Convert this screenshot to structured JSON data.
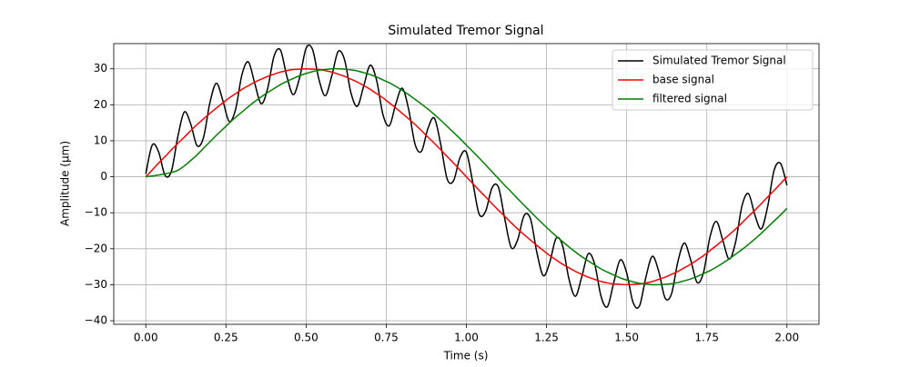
{
  "chart_data": {
    "type": "line",
    "title": "Simulated Tremor Signal",
    "x_label": "Time (s)",
    "y_label": "Amplitude (μm)",
    "x": [
      0,
      0.02,
      0.04,
      0.06,
      0.08,
      0.1,
      0.12,
      0.14,
      0.16,
      0.18,
      0.2,
      0.22,
      0.24,
      0.26,
      0.28,
      0.3,
      0.32,
      0.34,
      0.36,
      0.38,
      0.4,
      0.42,
      0.44,
      0.46,
      0.48,
      0.5,
      0.52,
      0.54,
      0.56,
      0.58,
      0.6,
      0.62,
      0.64,
      0.66,
      0.68,
      0.7,
      0.72,
      0.74,
      0.76,
      0.78,
      0.8,
      0.82,
      0.84,
      0.86,
      0.88,
      0.9,
      0.92,
      0.94,
      0.96,
      0.98,
      1,
      1.02,
      1.04,
      1.06,
      1.08,
      1.1,
      1.12,
      1.14,
      1.16,
      1.18,
      1.2,
      1.22,
      1.24,
      1.26,
      1.28,
      1.3,
      1.32,
      1.34,
      1.36,
      1.38,
      1.4,
      1.42,
      1.44,
      1.46,
      1.48,
      1.5,
      1.52,
      1.54,
      1.56,
      1.58,
      1.6,
      1.62,
      1.64,
      1.66,
      1.68,
      1.7,
      1.72,
      1.74,
      1.76,
      1.78,
      1.8,
      1.82,
      1.84,
      1.86,
      1.88,
      1.9,
      1.92,
      1.94,
      1.96,
      1.98,
      2
    ],
    "series": [
      {
        "name": "Simulated Tremor Signal",
        "color": "#000000",
        "values": [
          0.8,
          8.8,
          6.9,
          0.4,
          1.6,
          11.2,
          18.0,
          14.7,
          8.6,
          10.9,
          20.6,
          26.0,
          21.3,
          15.4,
          18.7,
          28.4,
          31.9,
          25.9,
          20.3,
          24.5,
          33.5,
          35.2,
          27.9,
          22.8,
          27.6,
          35.7,
          35.4,
          27.1,
          22.5,
          28.0,
          34.8,
          32.5,
          23.3,
          19.6,
          25.3,
          31.0,
          26.8,
          17.2,
          14.2,
          20.3,
          24.6,
          18.7,
          9.0,
          7.1,
          13.4,
          16.3,
          9.0,
          -0.6,
          -1.1,
          5.3,
          6.8,
          -1.6,
          -10.4,
          -9.6,
          -3.1,
          -2.9,
          -11.8,
          -19.7,
          -17.5,
          -10.8,
          -11.7,
          -21.1,
          -27.5,
          -23.8,
          -17.1,
          -19.1,
          -28.4,
          -33.2,
          -27.8,
          -21.4,
          -24.2,
          -33.2,
          -36.1,
          -29.3,
          -23.1,
          -26.7,
          -34.9,
          -35.9,
          -27.9,
          -22.1,
          -26.3,
          -33.7,
          -32.5,
          -23.5,
          -18.4,
          -23.2,
          -29.4,
          -26.5,
          -16.7,
          -12.4,
          -17.7,
          -22.9,
          -18.1,
          -8.0,
          -4.7,
          -10.6,
          -14.5,
          -8.2,
          1.8,
          3.7,
          -2.4
        ]
      },
      {
        "name": "base signal",
        "color": "#ff0000",
        "values": [
          0,
          1.9,
          3.8,
          5.6,
          7.5,
          9.3,
          11.0,
          12.8,
          14.5,
          16.1,
          17.6,
          19.1,
          20.5,
          21.9,
          23.1,
          24.3,
          25.3,
          26.3,
          27.1,
          27.9,
          28.5,
          29.1,
          29.5,
          29.8,
          29.9,
          30,
          29.9,
          29.8,
          29.5,
          29.1,
          28.5,
          27.9,
          27.1,
          26.3,
          25.3,
          24.3,
          23.1,
          21.9,
          20.5,
          19.1,
          17.6,
          16.1,
          14.5,
          12.8,
          11.0,
          9.3,
          7.5,
          5.6,
          3.8,
          1.9,
          0,
          -1.9,
          -3.8,
          -5.6,
          -7.5,
          -9.3,
          -11.0,
          -12.8,
          -14.5,
          -16.1,
          -17.6,
          -19.1,
          -20.5,
          -21.9,
          -23.1,
          -24.3,
          -25.3,
          -26.3,
          -27.1,
          -27.9,
          -28.5,
          -29.1,
          -29.5,
          -29.8,
          -29.9,
          -30,
          -29.9,
          -29.8,
          -29.5,
          -29.1,
          -28.5,
          -27.9,
          -27.1,
          -26.3,
          -25.3,
          -24.3,
          -23.1,
          -21.9,
          -20.5,
          -19.1,
          -17.6,
          -16.1,
          -14.5,
          -12.8,
          -11.0,
          -9.3,
          -7.5,
          -5.6,
          -3.8,
          -1.9,
          0
        ]
      },
      {
        "name": "filtered signal",
        "color": "#008000",
        "values": [
          0,
          0.2,
          0.5,
          0.8,
          1.2,
          1.8,
          3.0,
          4.5,
          6.1,
          7.9,
          9.7,
          11.5,
          13.2,
          14.9,
          16.5,
          18.0,
          19.5,
          20.9,
          22.2,
          23.4,
          24.5,
          25.6,
          26.5,
          27.3,
          28.1,
          28.7,
          29.2,
          29.6,
          29.8,
          30.0,
          30.0,
          29.9,
          29.7,
          29.4,
          28.9,
          28.4,
          27.7,
          26.9,
          26.1,
          25.1,
          24.0,
          22.8,
          21.5,
          20.2,
          18.8,
          17.3,
          15.7,
          14.0,
          12.3,
          10.6,
          8.8,
          7.0,
          5.2,
          3.3,
          1.4,
          -0.5,
          -2.4,
          -4.2,
          -6.1,
          -7.9,
          -9.7,
          -11.5,
          -13.2,
          -14.9,
          -16.5,
          -18.0,
          -19.5,
          -20.9,
          -22.2,
          -23.4,
          -24.5,
          -25.6,
          -26.5,
          -27.3,
          -28.1,
          -28.7,
          -29.2,
          -29.6,
          -29.8,
          -30.0,
          -30.0,
          -29.9,
          -29.7,
          -29.4,
          -28.9,
          -28.4,
          -27.7,
          -26.9,
          -26.1,
          -25.1,
          -24.0,
          -22.8,
          -21.5,
          -20.2,
          -18.8,
          -17.3,
          -15.7,
          -14.0,
          -12.3,
          -10.6,
          -8.8
        ]
      }
    ],
    "xlim": [
      -0.1,
      2.1
    ],
    "ylim": [
      -41,
      37
    ],
    "xticks": [
      {
        "value": 0,
        "label": "0.00"
      },
      {
        "value": 0.25,
        "label": "0.25"
      },
      {
        "value": 0.5,
        "label": "0.50"
      },
      {
        "value": 0.75,
        "label": "0.75"
      },
      {
        "value": 1,
        "label": "1.00"
      },
      {
        "value": 1.25,
        "label": "1.25"
      },
      {
        "value": 1.5,
        "label": "1.50"
      },
      {
        "value": 1.75,
        "label": "1.75"
      },
      {
        "value": 2,
        "label": "2.00"
      }
    ],
    "yticks": [
      {
        "value": -40,
        "label": "−40"
      },
      {
        "value": -30,
        "label": "−30"
      },
      {
        "value": -20,
        "label": "−20"
      },
      {
        "value": -10,
        "label": "−10"
      },
      0,
      10,
      20,
      30
    ],
    "grid": true,
    "legend": "upper right"
  }
}
